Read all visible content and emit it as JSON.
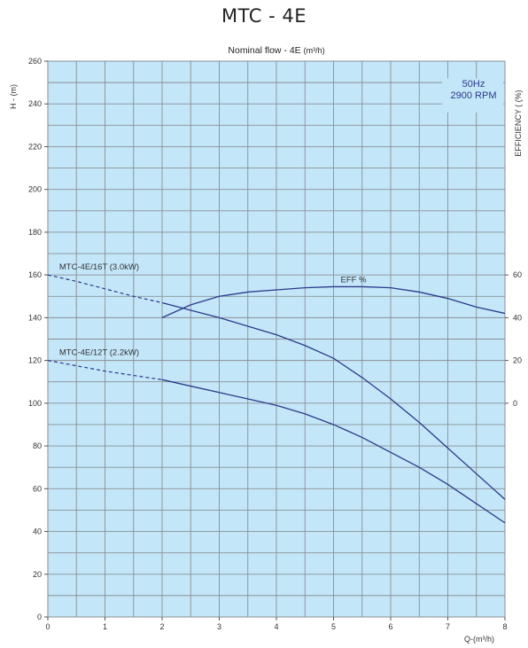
{
  "page_title": "MTC - 4E",
  "chart_data": {
    "type": "line",
    "title": "Nominal flow - 4E",
    "title_unit": "(m³/h)",
    "xlabel": "Q-(m³/h)",
    "ylabel": "H - (m)",
    "y2label": "EFFICIENCY ( (%)",
    "xlim": [
      0,
      8
    ],
    "ylim": [
      0,
      260
    ],
    "y2lim": [
      -100,
      160
    ],
    "x_ticks": [
      "0",
      "1",
      "2",
      "3",
      "4",
      "5",
      "6",
      "7",
      "8"
    ],
    "y_ticks": [
      "0",
      "20",
      "40",
      "60",
      "80",
      "100",
      "120",
      "140",
      "160",
      "180",
      "200",
      "220",
      "240",
      "260"
    ],
    "y2_ticks": [
      "0",
      "20",
      "40",
      "60"
    ],
    "grid": true,
    "annotation": {
      "line1": "50Hz",
      "line2": "2900 RPM"
    },
    "colors": {
      "plot_bg": "#c3e6f8",
      "grid": "#8a9096",
      "curve": "#2b3a8c",
      "minor_tick": "#9aa0a6"
    },
    "series": [
      {
        "name": "MTC-4E/16T (3.0kW)",
        "dashed_x": [
          0,
          0.5,
          1,
          1.5,
          2
        ],
        "dashed_y": [
          160,
          157,
          153.5,
          150,
          147
        ],
        "solid_x": [
          2,
          2.5,
          3,
          3.5,
          4,
          4.5,
          5,
          5.5,
          6,
          6.5,
          7,
          7.5,
          8
        ],
        "solid_y": [
          147,
          143.5,
          140,
          136,
          132,
          127,
          121,
          112,
          102,
          91,
          79,
          67,
          55
        ]
      },
      {
        "name": "MTC-4E/12T (2.2kW)",
        "dashed_x": [
          0,
          0.5,
          1,
          1.5,
          2
        ],
        "dashed_y": [
          120,
          117.5,
          115,
          113,
          111
        ],
        "solid_x": [
          2,
          2.5,
          3,
          3.5,
          4,
          4.5,
          5,
          5.5,
          6,
          6.5,
          7,
          7.5,
          8
        ],
        "solid_y": [
          111,
          108,
          105,
          102,
          99,
          95,
          90,
          84,
          77,
          70,
          62,
          53,
          44
        ]
      },
      {
        "name": "EFF %",
        "axis": "y2",
        "x": [
          2,
          2.5,
          3,
          3.5,
          4,
          4.5,
          5,
          5.5,
          6,
          6.5,
          7,
          7.5,
          8
        ],
        "y": [
          40,
          46,
          50,
          52,
          53,
          54,
          54.5,
          54.5,
          54,
          52,
          49,
          45,
          42
        ]
      }
    ]
  }
}
